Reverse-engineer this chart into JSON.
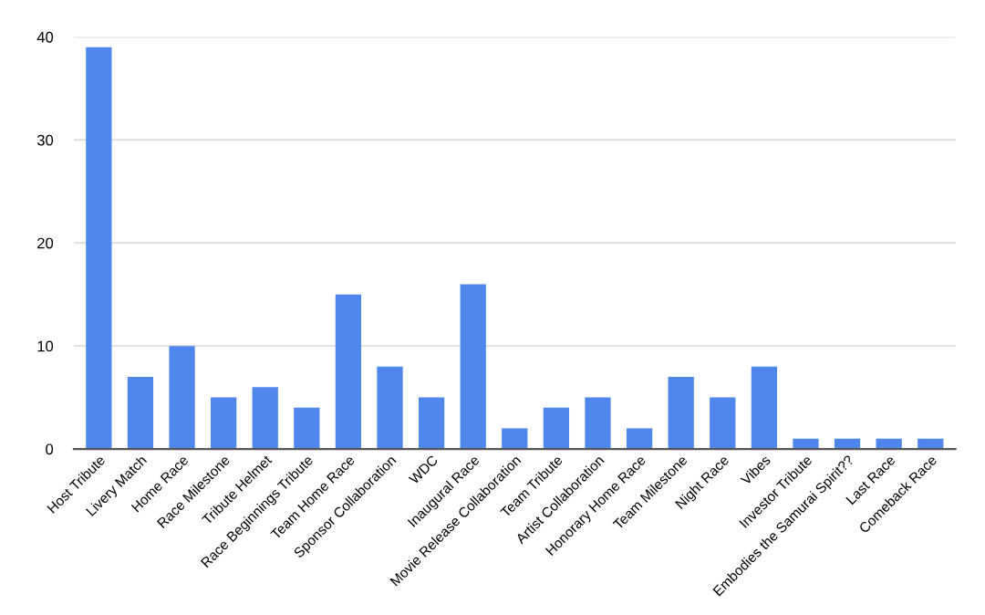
{
  "chart_data": {
    "type": "bar",
    "categories": [
      "Host Tribute",
      "Livery Match",
      "Home Race",
      "Race Milestone",
      "Tribute Helmet",
      "Race Beginnings Tribute",
      "Team Home Race",
      "Sponsor Collaboration",
      "WDC",
      "Inaugural Race",
      "Movie Release Collaboration",
      "Team Tribute",
      "Artist Collaboration",
      "Honorary Home Race",
      "Team Milestone",
      "Night Race",
      "Vibes",
      "Investor Tribute",
      "Embodies the Samurai Spirit??",
      "Last Race",
      "Comeback Race"
    ],
    "values": [
      39,
      7,
      10,
      5,
      6,
      4,
      15,
      8,
      5,
      16,
      2,
      4,
      5,
      2,
      7,
      5,
      8,
      1,
      1,
      1,
      1
    ],
    "color": "#4f86ec",
    "ylim": [
      0,
      40
    ],
    "yticks": [
      0,
      10,
      20,
      30,
      40
    ],
    "grid": "y"
  }
}
